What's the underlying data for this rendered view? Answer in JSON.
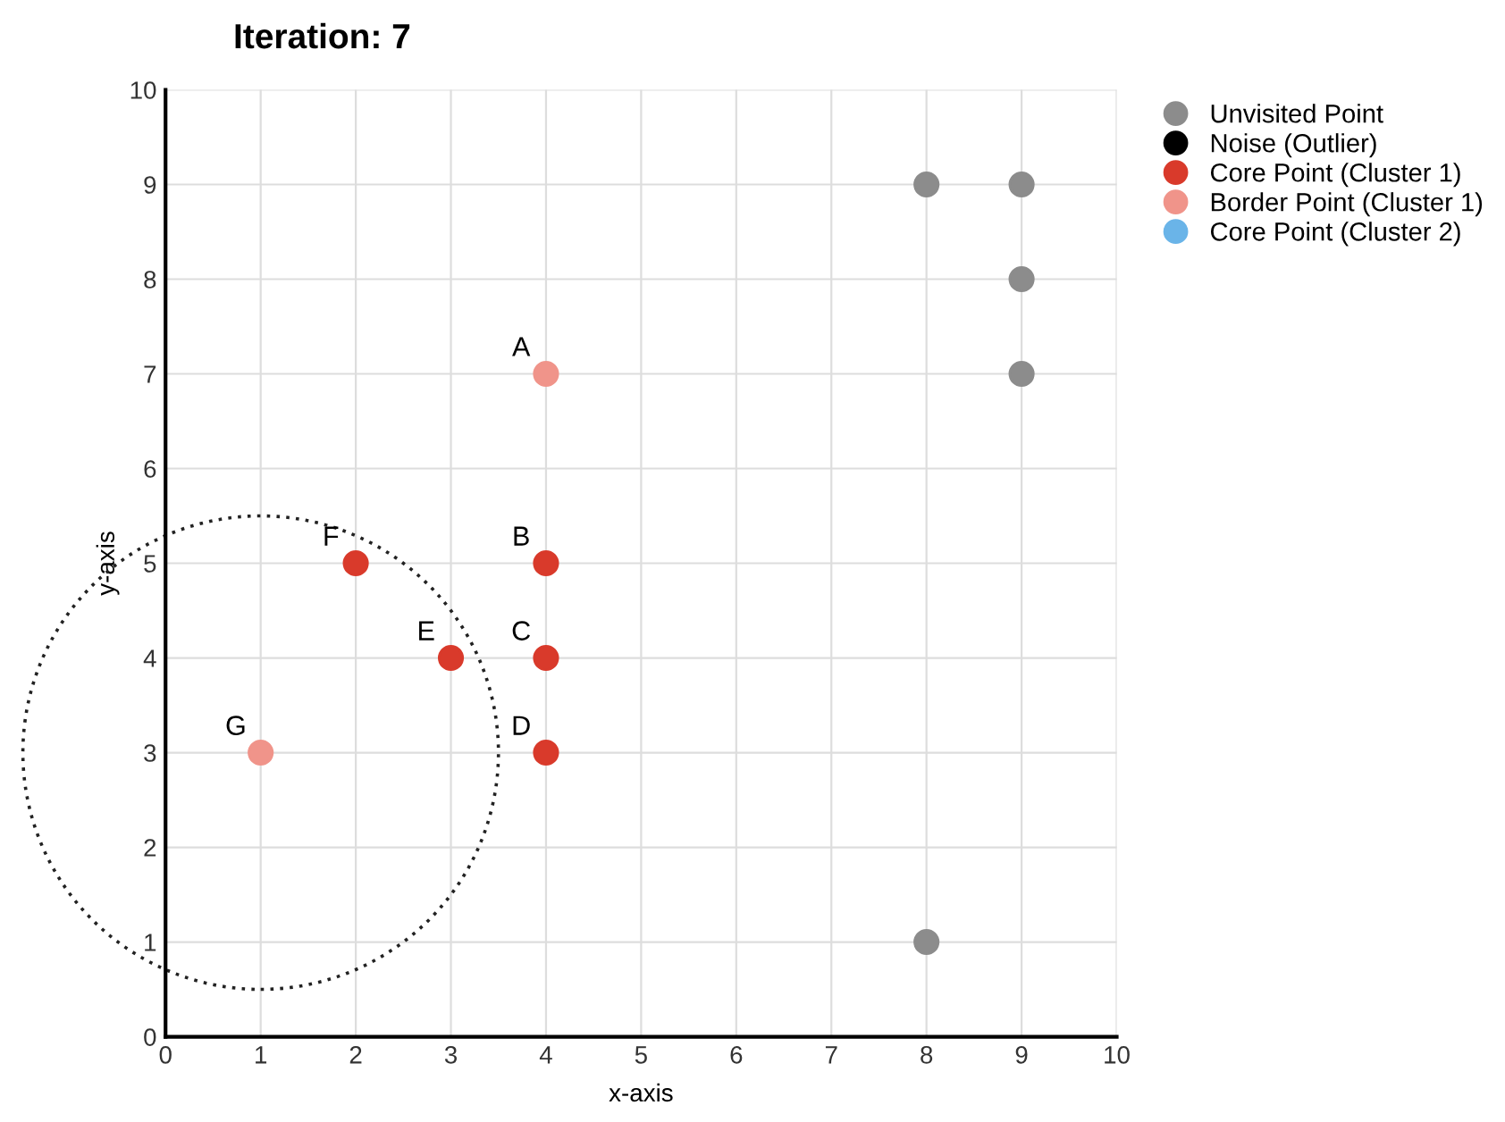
{
  "chart_data": {
    "type": "scatter",
    "title": "Iteration: 7",
    "xlabel": "x-axis",
    "ylabel": "y-axis",
    "xlim": [
      0,
      10
    ],
    "ylim": [
      0,
      10
    ],
    "xticks": [
      0,
      1,
      2,
      3,
      4,
      5,
      6,
      7,
      8,
      9,
      10
    ],
    "yticks": [
      0,
      1,
      2,
      3,
      4,
      5,
      6,
      7,
      8,
      9,
      10
    ],
    "grid": true,
    "legend": "top right",
    "marker": "circle",
    "series": [
      {
        "name": "Unvisited Point",
        "color": "#8c8c8c",
        "x": [
          8,
          9,
          9,
          9,
          8
        ],
        "values": [
          9,
          9,
          8,
          7,
          1
        ]
      },
      {
        "name": "Noise (Outlier)",
        "color": "#000000"
      },
      {
        "name": "Core Point (Cluster 1)",
        "color": "#d93a2b",
        "x": [
          2,
          3,
          4,
          4,
          4
        ],
        "values": [
          5,
          4,
          5,
          4,
          3
        ]
      },
      {
        "name": "Border Point (Cluster 1)",
        "color": "#f0948a",
        "x": [
          4,
          1
        ],
        "values": [
          7,
          3
        ]
      },
      {
        "name": "Core Point (Cluster 2)",
        "color": "#6ab4e8"
      }
    ],
    "annotations": [
      {
        "text": "A",
        "x": 4,
        "y": 7
      },
      {
        "text": "B",
        "x": 4,
        "y": 5
      },
      {
        "text": "C",
        "x": 4,
        "y": 4
      },
      {
        "text": "D",
        "x": 4,
        "y": 3
      },
      {
        "text": "E",
        "x": 3,
        "y": 4
      },
      {
        "text": "F",
        "x": 2,
        "y": 5
      },
      {
        "text": "G",
        "x": 1,
        "y": 3
      }
    ]
  }
}
